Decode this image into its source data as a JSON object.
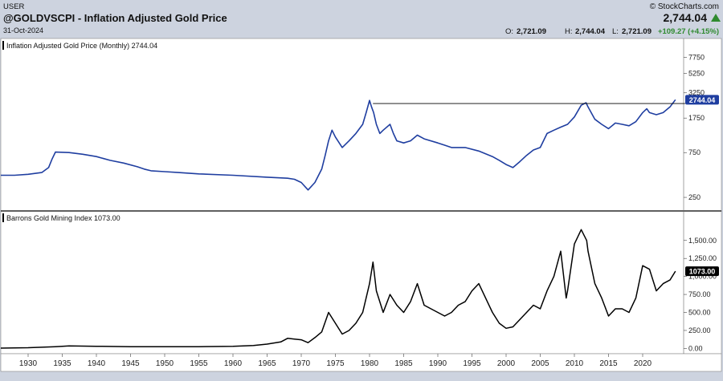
{
  "header": {
    "user": "USER",
    "symbol_title": "@GOLDVSCPI - Inflation Adjusted Gold Price",
    "date": "31-Oct-2024",
    "brand": "© StockCharts.com",
    "last_price": "2,744.04",
    "open_label": "O:",
    "open_value": "2,721.09",
    "high_label": "H:",
    "high_value": "2,744.04",
    "low_label": "L:",
    "low_value": "2,721.09",
    "change": "+109.27 (+4.15%)"
  },
  "colors": {
    "background": "#cdd3df",
    "panel": "#ffffff",
    "gold_line": "#1f3ea0",
    "mining_line": "#000000",
    "change_up": "#2f8a2f"
  },
  "chart_data": [
    {
      "type": "line",
      "title": "Inflation Adjusted Gold Price (Monthly) 2744.04",
      "y_scale": "log",
      "y_ticks": [
        250,
        750,
        1750,
        3250,
        5250,
        7750
      ],
      "ylim": [
        190,
        9000
      ],
      "xlim": [
        1926,
        2026
      ],
      "last_value_label": "2744.04",
      "horizontal_line_value": 2500,
      "horizontal_line_range": [
        1980.5,
        2024.8
      ],
      "series": [
        {
          "x": [
            1926.0,
            1928.0,
            1930.0,
            1932.0,
            1933.0,
            1933.5,
            1934.0,
            1936.0,
            1938.0,
            1940.0,
            1942.0,
            1944.0,
            1946.0,
            1947.0,
            1948.0,
            1950.0,
            1952.0,
            1955.0,
            1960.0,
            1965.0,
            1968.0,
            1969.0,
            1970.0,
            1971.0,
            1972.0,
            1973.0,
            1973.5,
            1974.0,
            1974.5,
            1975.0,
            1976.0,
            1977.0,
            1978.0,
            1979.0,
            1979.5,
            1980.0,
            1980.3,
            1980.6,
            1981.0,
            1981.5,
            1982.0,
            1983.0,
            1983.5,
            1984.0,
            1985.0,
            1986.0,
            1987.0,
            1988.0,
            1990.0,
            1991.0,
            1992.0,
            1993.0,
            1994.0,
            1996.0,
            1998.0,
            1999.0,
            2000.0,
            2001.0,
            2002.0,
            2003.0,
            2004.0,
            2005.0,
            2006.0,
            2007.0,
            2008.0,
            2009.0,
            2010.0,
            2011.0,
            2011.7,
            2012.0,
            2013.0,
            2014.0,
            2015.0,
            2016.0,
            2017.0,
            2018.0,
            2019.0,
            2020.0,
            2020.6,
            2021.0,
            2022.0,
            2023.0,
            2024.0,
            2024.8
          ],
          "y": [
            430,
            430,
            440,
            460,
            520,
            640,
            760,
            750,
            720,
            680,
            620,
            580,
            530,
            500,
            480,
            470,
            460,
            445,
            430,
            410,
            400,
            390,
            360,
            300,
            360,
            500,
            700,
            1000,
            1300,
            1100,
            850,
            1000,
            1200,
            1500,
            2000,
            2700,
            2300,
            2000,
            1500,
            1200,
            1300,
            1500,
            1200,
            1000,
            950,
            1000,
            1150,
            1050,
            950,
            900,
            850,
            850,
            850,
            780,
            680,
            620,
            560,
            520,
            600,
            700,
            800,
            850,
            1200,
            1300,
            1400,
            1500,
            1800,
            2400,
            2550,
            2300,
            1700,
            1500,
            1350,
            1550,
            1500,
            1450,
            1600,
            2000,
            2200,
            2000,
            1900,
            2000,
            2300,
            2744
          ]
        }
      ]
    },
    {
      "type": "line",
      "title": "Barrons Gold Mining Index 1073.00",
      "y_ticks": [
        0.0,
        250.0,
        500.0,
        750.0,
        1000.0,
        1250.0,
        1500.0
      ],
      "y_tick_labels": [
        "0.00",
        "250.00",
        "500.00",
        "750.00",
        "1,000.00",
        "1,250.00",
        "1,500.00"
      ],
      "ylim": [
        -40,
        1720
      ],
      "xlim": [
        1926,
        2026
      ],
      "last_value_label": "1073.00",
      "x_ticks": [
        "1930",
        "1935",
        "1940",
        "1945",
        "1950",
        "1955",
        "1960",
        "1965",
        "1970",
        "1975",
        "1980",
        "1985",
        "1990",
        "1995",
        "2000",
        "2005",
        "2010",
        "2015",
        "2020"
      ],
      "series": [
        {
          "x": [
            1926.0,
            1930.0,
            1934.0,
            1936.0,
            1940.0,
            1945.0,
            1950.0,
            1955.0,
            1960.0,
            1963.0,
            1965.0,
            1967.0,
            1968.0,
            1969.0,
            1970.0,
            1971.0,
            1972.0,
            1973.0,
            1974.0,
            1975.0,
            1976.0,
            1977.0,
            1978.0,
            1979.0,
            1980.0,
            1980.5,
            1981.0,
            1982.0,
            1983.0,
            1984.0,
            1985.0,
            1986.0,
            1987.0,
            1988.0,
            1989.0,
            1990.0,
            1991.0,
            1992.0,
            1993.0,
            1994.0,
            1995.0,
            1996.0,
            1997.0,
            1998.0,
            1999.0,
            2000.0,
            2001.0,
            2002.0,
            2003.0,
            2004.0,
            2005.0,
            2006.0,
            2007.0,
            2008.0,
            2008.8,
            2009.0,
            2010.0,
            2011.0,
            2011.8,
            2012.0,
            2013.0,
            2014.0,
            2015.0,
            2016.0,
            2017.0,
            2018.0,
            2019.0,
            2020.0,
            2021.0,
            2022.0,
            2023.0,
            2024.0,
            2024.8
          ],
          "y": [
            5,
            10,
            25,
            35,
            30,
            25,
            25,
            25,
            30,
            40,
            60,
            90,
            140,
            130,
            120,
            80,
            150,
            230,
            500,
            350,
            200,
            250,
            350,
            500,
            900,
            1200,
            800,
            500,
            750,
            600,
            500,
            650,
            900,
            600,
            550,
            500,
            450,
            500,
            600,
            650,
            800,
            900,
            700,
            500,
            350,
            280,
            300,
            400,
            500,
            600,
            550,
            800,
            1000,
            1350,
            700,
            800,
            1450,
            1650,
            1500,
            1350,
            900,
            700,
            450,
            550,
            550,
            500,
            700,
            1150,
            1100,
            800,
            900,
            950,
            1073
          ]
        }
      ]
    }
  ]
}
